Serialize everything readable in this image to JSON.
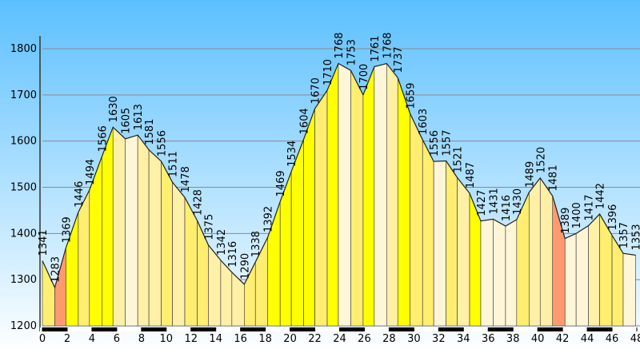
{
  "chart_data": {
    "type": "area",
    "x": [
      0,
      1.0,
      1.9,
      2.9,
      3.8,
      4.8,
      5.7,
      6.7,
      7.7,
      8.6,
      9.6,
      10.5,
      11.5,
      12.5,
      13.4,
      14.4,
      15.3,
      16.3,
      17.2,
      18.2,
      19.2,
      20.1,
      21.1,
      22.0,
      23.0,
      23.9,
      24.9,
      25.9,
      26.8,
      27.8,
      28.7,
      29.7,
      30.7,
      31.6,
      32.6,
      33.5,
      34.5,
      35.4,
      36.4,
      37.4,
      38.3,
      39.3,
      40.2,
      41.2,
      42.2,
      43.1,
      44.1,
      45.0,
      46.0,
      46.9,
      47.9
    ],
    "values": [
      1341,
      1283,
      1369,
      1446,
      1494,
      1566,
      1630,
      1605,
      1613,
      1581,
      1556,
      1511,
      1478,
      1428,
      1375,
      1342,
      1316,
      1290,
      1338,
      1392,
      1469,
      1534,
      1604,
      1670,
      1710,
      1768,
      1753,
      1700,
      1761,
      1768,
      1737,
      1659,
      1603,
      1556,
      1557,
      1521,
      1487,
      1427,
      1431,
      1416,
      1430,
      1489,
      1520,
      1481,
      1389,
      1400,
      1417,
      1442,
      1396,
      1357,
      1353
    ],
    "grade_colors": [
      "#fff6d8",
      "#fff0a8",
      "#ffee70",
      "#ffff00",
      "#ff9a70"
    ],
    "xlim": [
      0,
      48
    ],
    "xticks": [
      0,
      2,
      4,
      6,
      8,
      10,
      12,
      14,
      16,
      18,
      20,
      22,
      24,
      26,
      28,
      30,
      32,
      34,
      36,
      38,
      40,
      42,
      44,
      46,
      48
    ],
    "ylim": [
      1200,
      1800
    ],
    "yticks": [
      1200,
      1300,
      1400,
      1500,
      1600,
      1700,
      1800
    ],
    "grid": true
  }
}
